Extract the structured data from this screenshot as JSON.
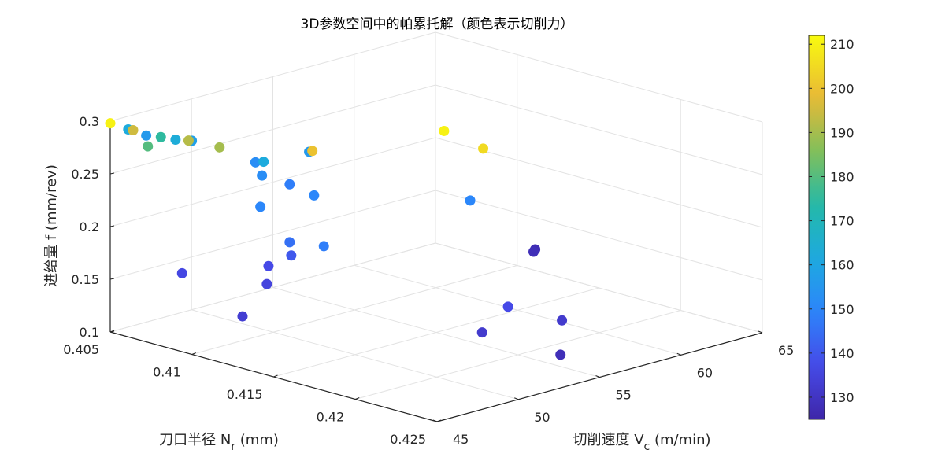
{
  "chart_data": {
    "type": "scatter",
    "title": "3D参数空间中的帕累托解（颜色表示切削力）",
    "xlabel": "刀口半径 N",
    "xlabel_sub": "r",
    "xlabel_unit": " (mm)",
    "ylabel": "切削速度 V",
    "ylabel_sub": "c",
    "ylabel_unit": " (m/min)",
    "zlabel": "进给量 f (mm/rev)",
    "xlim": [
      0.405,
      0.425
    ],
    "ylim": [
      45,
      65
    ],
    "zlim": [
      0.1,
      0.3
    ],
    "xticks": [
      "0.405",
      "0.41",
      "0.415",
      "0.42",
      "0.425"
    ],
    "yticks": [
      "45",
      "50",
      "55",
      "60",
      "65"
    ],
    "zticks": [
      "0.1",
      "0.15",
      "0.2",
      "0.25",
      "0.3"
    ],
    "colorbar": {
      "min": 125,
      "max": 212,
      "ticks": [
        "130",
        "140",
        "150",
        "160",
        "170",
        "180",
        "190",
        "200",
        "210"
      ]
    },
    "grid": true,
    "colormap": "parula",
    "points": [
      {
        "x": 0.405,
        "y": 45.0,
        "z": 0.298,
        "c": 210
      },
      {
        "x": 0.406,
        "y": 45.1,
        "z": 0.296,
        "c": 162
      },
      {
        "x": 0.406,
        "y": 45.4,
        "z": 0.294,
        "c": 195
      },
      {
        "x": 0.407,
        "y": 45.2,
        "z": 0.294,
        "c": 156
      },
      {
        "x": 0.4075,
        "y": 45.6,
        "z": 0.293,
        "c": 175
      },
      {
        "x": 0.4072,
        "y": 45.1,
        "z": 0.285,
        "c": 180
      },
      {
        "x": 0.408,
        "y": 46.0,
        "z": 0.291,
        "c": 163
      },
      {
        "x": 0.4085,
        "y": 46.5,
        "z": 0.29,
        "c": 158
      },
      {
        "x": 0.4085,
        "y": 46.3,
        "z": 0.291,
        "c": 192
      },
      {
        "x": 0.4095,
        "y": 47.2,
        "z": 0.285,
        "c": 190
      },
      {
        "x": 0.4105,
        "y": 48.4,
        "z": 0.27,
        "c": 152
      },
      {
        "x": 0.4108,
        "y": 48.6,
        "z": 0.271,
        "c": 162
      },
      {
        "x": 0.4112,
        "y": 51.0,
        "z": 0.272,
        "c": 156
      },
      {
        "x": 0.4112,
        "y": 51.2,
        "z": 0.272,
        "c": 200
      },
      {
        "x": 0.411,
        "y": 48.3,
        "z": 0.26,
        "c": 152
      },
      {
        "x": 0.412,
        "y": 49.0,
        "z": 0.253,
        "c": 148
      },
      {
        "x": 0.4115,
        "y": 47.7,
        "z": 0.235,
        "c": 150
      },
      {
        "x": 0.4121,
        "y": 50.4,
        "z": 0.237,
        "c": 150
      },
      {
        "x": 0.4104,
        "y": 60.1,
        "z": 0.25,
        "c": 210
      },
      {
        "x": 0.4118,
        "y": 61.1,
        "z": 0.235,
        "c": 205
      },
      {
        "x": 0.4114,
        "y": 49.6,
        "z": 0.193,
        "c": 145
      },
      {
        "x": 0.4123,
        "y": 50.8,
        "z": 0.188,
        "c": 148
      },
      {
        "x": 0.4114,
        "y": 49.7,
        "z": 0.18,
        "c": 140
      },
      {
        "x": 0.4113,
        "y": 48.4,
        "z": 0.175,
        "c": 137
      },
      {
        "x": 0.409,
        "y": 45.4,
        "z": 0.171,
        "c": 136
      },
      {
        "x": 0.4115,
        "y": 48.1,
        "z": 0.16,
        "c": 135
      },
      {
        "x": 0.412,
        "y": 46.1,
        "z": 0.14,
        "c": 133
      },
      {
        "x": 0.4119,
        "y": 60.2,
        "z": 0.19,
        "c": 150
      },
      {
        "x": 0.4175,
        "y": 56.9,
        "z": 0.127,
        "c": 137
      },
      {
        "x": 0.419,
        "y": 53.8,
        "z": 0.122,
        "c": 132
      },
      {
        "x": 0.4208,
        "y": 56.9,
        "z": 0.128,
        "c": 132
      },
      {
        "x": 0.4227,
        "y": 54.9,
        "z": 0.112,
        "c": 128
      },
      {
        "x": 0.4111,
        "y": 65.0,
        "z": 0.12,
        "c": 127
      },
      {
        "x": 0.4112,
        "y": 64.8,
        "z": 0.119,
        "c": 128
      }
    ]
  }
}
